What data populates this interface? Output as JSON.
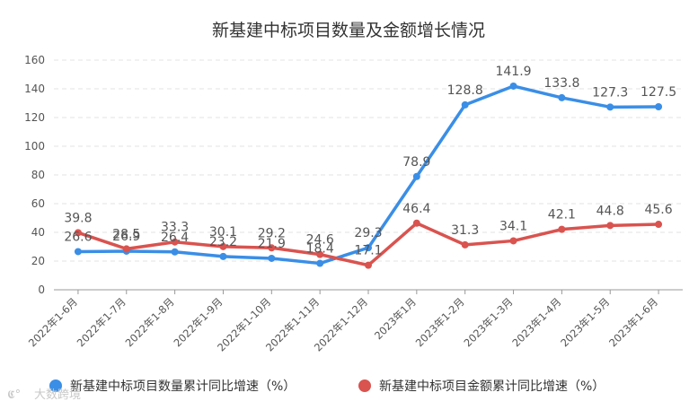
{
  "chart_data": {
    "type": "line",
    "title": "新基建中标项目数量及金额增长情况",
    "categories": [
      "2022年1-6月",
      "2022年1-7月",
      "2022年1-8月",
      "2022年1-9月",
      "2022年1-10月",
      "2022年1-11月",
      "2022年1-12月",
      "2023年1月",
      "2023年1-2月",
      "2023年1-3月",
      "2023年1-4月",
      "2023年1-5月",
      "2023年1-6月"
    ],
    "series": [
      {
        "name": "新基建中标项目数量累计同比增速（%）",
        "color": "#3a8ee6",
        "values": [
          26.6,
          26.9,
          26.4,
          23.2,
          21.9,
          18.4,
          29.3,
          78.9,
          128.8,
          141.9,
          133.8,
          127.3,
          127.5
        ]
      },
      {
        "name": "新基建中标项目金额累计同比增速（%）",
        "color": "#d9534f",
        "values": [
          39.8,
          28.5,
          33.3,
          30.1,
          29.2,
          24.6,
          17.1,
          46.4,
          31.3,
          34.1,
          42.1,
          44.8,
          45.6
        ]
      }
    ],
    "ylim": [
      0,
      160
    ],
    "yticks": [
      0,
      20,
      40,
      60,
      80,
      100,
      120,
      140,
      160
    ],
    "grid": true,
    "legend": "bottom",
    "xlabel": "",
    "ylabel": ""
  },
  "watermark": "大数跨境"
}
